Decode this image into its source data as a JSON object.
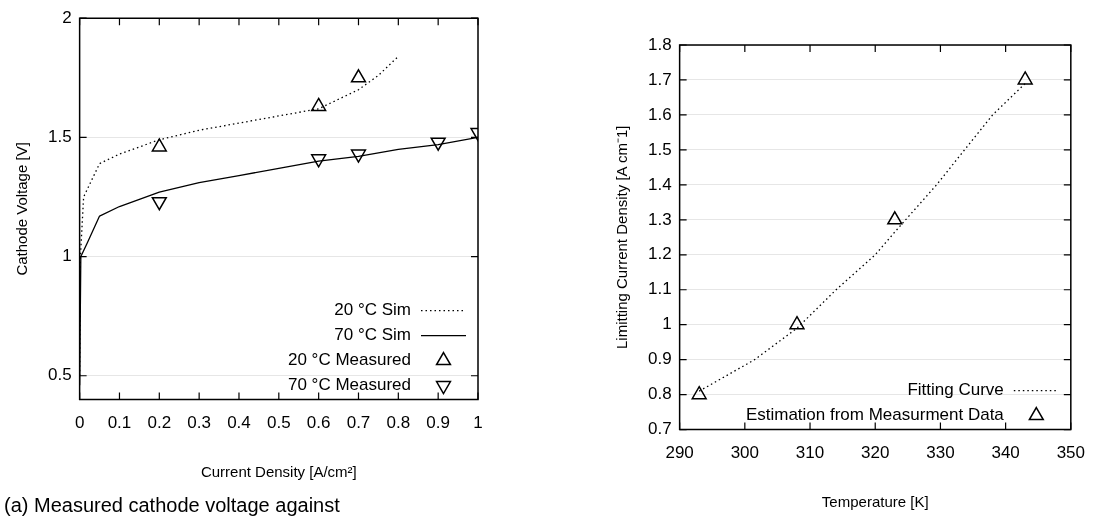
{
  "chart_data": [
    {
      "type": "line",
      "xlabel": "Current Density [A/cm²]",
      "ylabel": "Cathode Voltage [V]",
      "xlim": [
        0,
        1
      ],
      "xticks": [
        0,
        0.1,
        0.2,
        0.3,
        0.4,
        0.5,
        0.6,
        0.7,
        0.8,
        0.9,
        1
      ],
      "ylim": [
        0.4,
        2
      ],
      "yticks": [
        0.5,
        1,
        1.5,
        2
      ],
      "grid": "y",
      "legend": "bottom right",
      "annotations": [
        "(a) Measured cathode voltage against"
      ],
      "series": [
        {
          "name": "20 °C Sim",
          "type": "line",
          "color": "#000000",
          "line_style": "dotted",
          "marker": "none",
          "x": [
            0,
            0.002,
            0.01,
            0.05,
            0.1,
            0.2,
            0.3,
            0.4,
            0.5,
            0.6,
            0.7,
            0.75,
            0.8
          ],
          "values": [
            0.5,
            1.0,
            1.25,
            1.39,
            1.43,
            1.49,
            1.53,
            1.56,
            1.59,
            1.62,
            1.7,
            1.76,
            1.84
          ]
        },
        {
          "name": "70 °C Sim",
          "type": "line",
          "color": "#000000",
          "line_style": "solid",
          "marker": "none",
          "x": [
            0,
            0.003,
            0.02,
            0.05,
            0.1,
            0.2,
            0.3,
            0.4,
            0.5,
            0.6,
            0.7,
            0.8,
            0.9,
            1
          ],
          "values": [
            0.46,
            1.0,
            1.06,
            1.17,
            1.21,
            1.27,
            1.31,
            1.34,
            1.37,
            1.4,
            1.42,
            1.45,
            1.47,
            1.5
          ]
        },
        {
          "name": "20 °C Measured",
          "type": "scatter",
          "color": "#000000",
          "marker": "triangle",
          "x": [
            0.2,
            0.6,
            0.7
          ],
          "values": [
            1.46,
            1.63,
            1.75
          ]
        },
        {
          "name": "70 °C Measured",
          "type": "scatter",
          "color": "#000000",
          "marker": "triangle-down",
          "x": [
            0.2,
            0.6,
            0.7,
            0.9,
            1
          ],
          "values": [
            1.23,
            1.41,
            1.43,
            1.48,
            1.52
          ]
        }
      ]
    },
    {
      "type": "line",
      "xlabel": "Temperature [K]",
      "ylabel": "Limitting Current Density [A cm⁻1]",
      "xlim": [
        290,
        350
      ],
      "xticks": [
        290,
        300,
        310,
        320,
        330,
        340,
        350
      ],
      "ylim": [
        0.7,
        1.8
      ],
      "yticks": [
        0.7,
        0.8,
        0.9,
        1,
        1.1,
        1.2,
        1.3,
        1.4,
        1.5,
        1.6,
        1.7,
        1.8
      ],
      "grid": "y",
      "legend": "bottom right",
      "series": [
        {
          "name": "Fitting Curve",
          "type": "line",
          "color": "#000000",
          "line_style": "dotted",
          "marker": "none",
          "x": [
            293,
            301.5,
            308,
            314,
            320,
            323,
            329.4,
            333.7,
            338,
            343
          ],
          "values": [
            0.81,
            0.9,
            0.99,
            1.1,
            1.2,
            1.265,
            1.4,
            1.5,
            1.6,
            1.69
          ]
        },
        {
          "name": "Estimation from Measurment Data",
          "type": "scatter",
          "color": "#000000",
          "marker": "triangle",
          "x": [
            293,
            308,
            323,
            343
          ],
          "values": [
            0.8,
            1.0,
            1.3,
            1.7
          ]
        }
      ]
    }
  ]
}
